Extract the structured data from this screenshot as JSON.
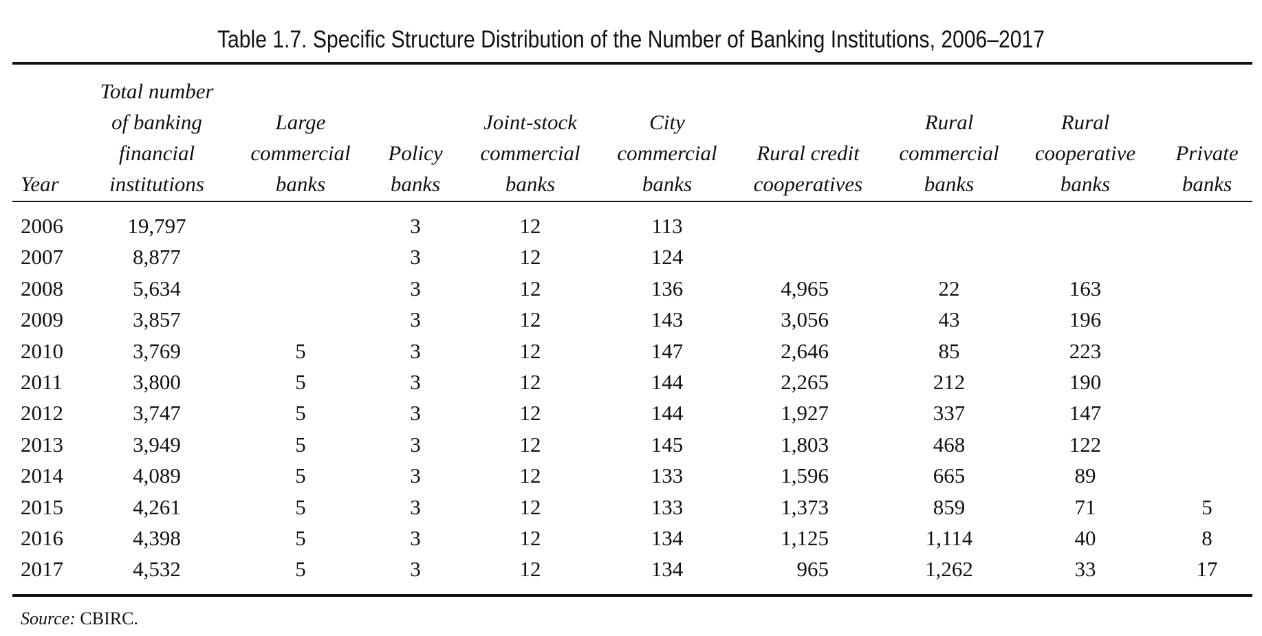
{
  "title": "Table 1.7. Specific Structure Distribution of the Number of Banking Institutions, 2006–2017",
  "columns": [
    {
      "key": "year",
      "lines": [
        "Year"
      ]
    },
    {
      "key": "total",
      "lines": [
        "Total number",
        "of banking",
        "financial",
        "institutions"
      ]
    },
    {
      "key": "large",
      "lines": [
        "Large",
        "commercial",
        "banks"
      ]
    },
    {
      "key": "policy",
      "lines": [
        "Policy",
        "banks"
      ]
    },
    {
      "key": "joint",
      "lines": [
        "Joint-stock",
        "commercial",
        "banks"
      ]
    },
    {
      "key": "city",
      "lines": [
        "City",
        "commercial",
        "banks"
      ]
    },
    {
      "key": "rcc",
      "lines": [
        "Rural credit",
        "cooperatives"
      ]
    },
    {
      "key": "rcb",
      "lines": [
        "Rural",
        "commercial",
        "banks"
      ]
    },
    {
      "key": "rcoop",
      "lines": [
        "Rural",
        "cooperative",
        "banks"
      ]
    },
    {
      "key": "private",
      "lines": [
        "Private",
        "banks"
      ]
    }
  ],
  "rows": [
    {
      "year": "2006",
      "total": "19,797",
      "large": "",
      "policy": "3",
      "joint": "12",
      "city": "113",
      "rcc": "",
      "rcb": "",
      "rcoop": "",
      "private": ""
    },
    {
      "year": "2007",
      "total": "8,877",
      "large": "",
      "policy": "3",
      "joint": "12",
      "city": "124",
      "rcc": "",
      "rcb": "",
      "rcoop": "",
      "private": ""
    },
    {
      "year": "2008",
      "total": "5,634",
      "large": "",
      "policy": "3",
      "joint": "12",
      "city": "136",
      "rcc": "4,965",
      "rcb": "22",
      "rcoop": "163",
      "private": ""
    },
    {
      "year": "2009",
      "total": "3,857",
      "large": "",
      "policy": "3",
      "joint": "12",
      "city": "143",
      "rcc": "3,056",
      "rcb": "43",
      "rcoop": "196",
      "private": ""
    },
    {
      "year": "2010",
      "total": "3,769",
      "large": "5",
      "policy": "3",
      "joint": "12",
      "city": "147",
      "rcc": "2,646",
      "rcb": "85",
      "rcoop": "223",
      "private": ""
    },
    {
      "year": "2011",
      "total": "3,800",
      "large": "5",
      "policy": "3",
      "joint": "12",
      "city": "144",
      "rcc": "2,265",
      "rcb": "212",
      "rcoop": "190",
      "private": ""
    },
    {
      "year": "2012",
      "total": "3,747",
      "large": "5",
      "policy": "3",
      "joint": "12",
      "city": "144",
      "rcc": "1,927",
      "rcb": "337",
      "rcoop": "147",
      "private": ""
    },
    {
      "year": "2013",
      "total": "3,949",
      "large": "5",
      "policy": "3",
      "joint": "12",
      "city": "145",
      "rcc": "1,803",
      "rcb": "468",
      "rcoop": "122",
      "private": ""
    },
    {
      "year": "2014",
      "total": "4,089",
      "large": "5",
      "policy": "3",
      "joint": "12",
      "city": "133",
      "rcc": "1,596",
      "rcb": "665",
      "rcoop": "89",
      "private": ""
    },
    {
      "year": "2015",
      "total": "4,261",
      "large": "5",
      "policy": "3",
      "joint": "12",
      "city": "133",
      "rcc": "1,373",
      "rcb": "859",
      "rcoop": "71",
      "private": "5"
    },
    {
      "year": "2016",
      "total": "4,398",
      "large": "5",
      "policy": "3",
      "joint": "12",
      "city": "134",
      "rcc": "1,125",
      "rcb": "1,114",
      "rcoop": "40",
      "private": "8"
    },
    {
      "year": "2017",
      "total": "4,532",
      "large": "5",
      "policy": "3",
      "joint": "12",
      "city": "134",
      "rcc": "965",
      "rcb": "1,262",
      "rcoop": "33",
      "private": "17"
    }
  ],
  "source": {
    "label": "Source:",
    "text": "CBIRC."
  }
}
